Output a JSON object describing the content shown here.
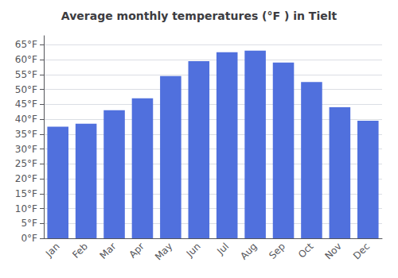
{
  "chart_data": {
    "type": "bar",
    "title": "Average monthly temperatures (°F ) in Tielt",
    "categories": [
      "Jan",
      "Feb",
      "Mar",
      "Apr",
      "May",
      "Jun",
      "Jul",
      "Aug",
      "Sep",
      "Oct",
      "Nov",
      "Dec"
    ],
    "values": [
      37.5,
      38.5,
      43.0,
      47.0,
      54.5,
      59.5,
      62.5,
      63.0,
      59.0,
      52.5,
      44.0,
      39.5
    ],
    "ylim": [
      0,
      68
    ],
    "yticks": [
      {
        "value": 0,
        "label": "0°F"
      },
      {
        "value": 5,
        "label": "5°F"
      },
      {
        "value": 10,
        "label": "10°F"
      },
      {
        "value": 15,
        "label": "15°F"
      },
      {
        "value": 20,
        "label": "20°F"
      },
      {
        "value": 25,
        "label": "25°F"
      },
      {
        "value": 30,
        "label": "30°F"
      },
      {
        "value": 35,
        "label": "35°F"
      },
      {
        "value": 40,
        "label": "40°F"
      },
      {
        "value": 45,
        "label": "45°F"
      },
      {
        "value": 50,
        "label": "50°F"
      },
      {
        "value": 55,
        "label": "55°F"
      },
      {
        "value": 60,
        "label": "60°F"
      },
      {
        "value": 65,
        "label": "65°F"
      }
    ],
    "grid": true
  }
}
